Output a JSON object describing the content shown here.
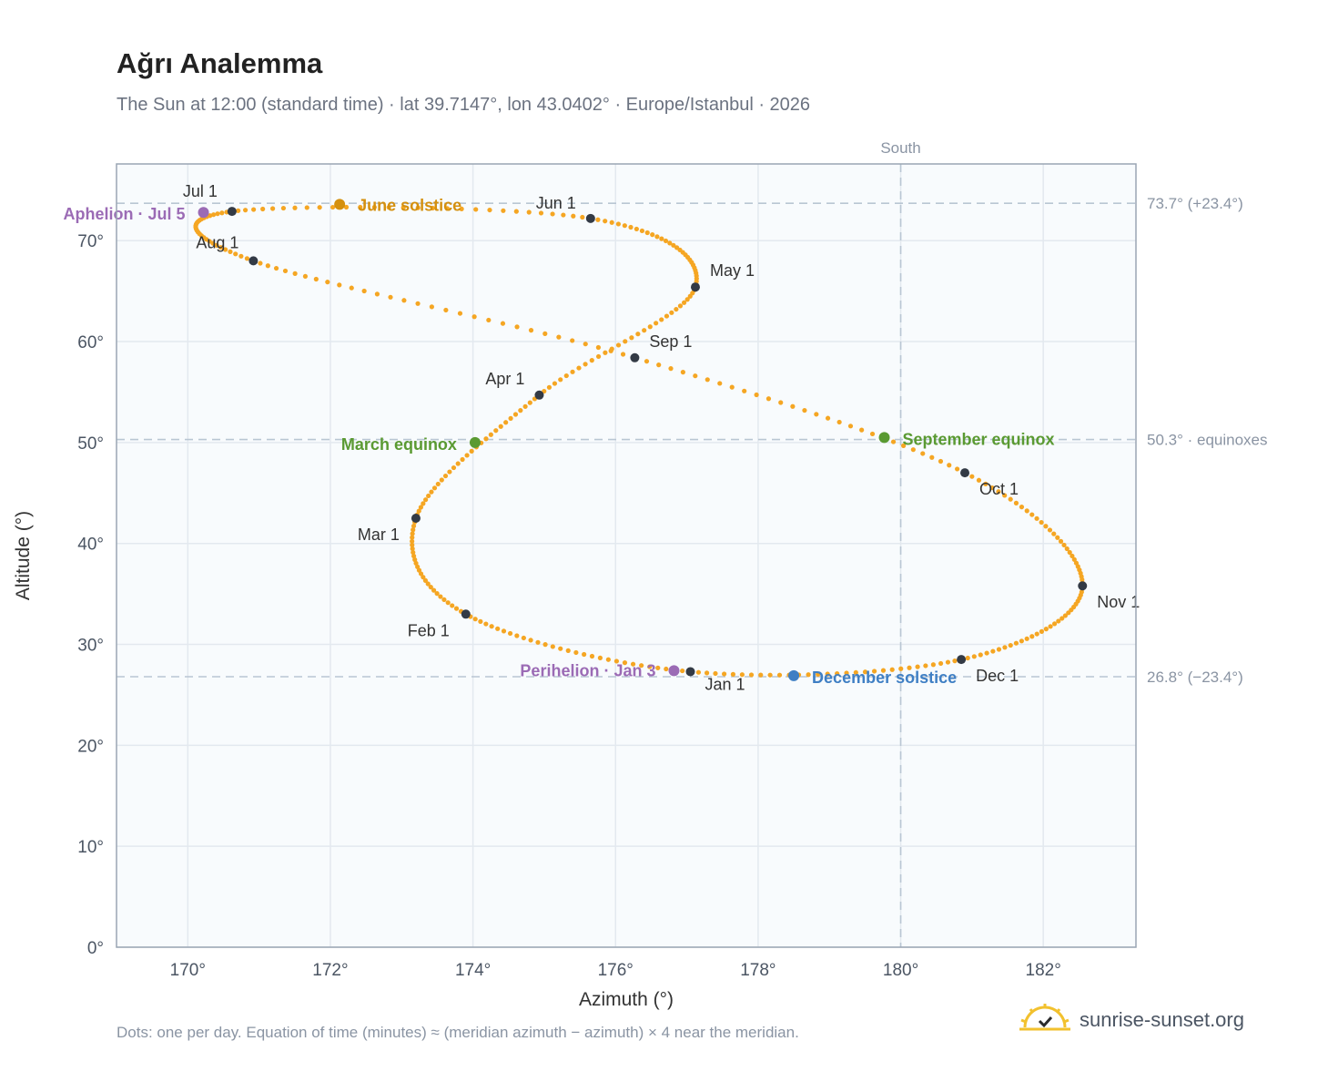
{
  "title": "Ağrı Analemma",
  "subtitle": "The Sun at 12:00 (standard time) · lat 39.7147°, lon 43.0402° · Europe/Istanbul · 2026",
  "footnote": "Dots: one per day. Equation of time (minutes) ≈ (meridian azimuth − azimuth) × 4 near the meridian.",
  "brand": {
    "text": "sunrise-sunset.org",
    "icon": "sun-check-icon",
    "icon_color": "#f2c12e"
  },
  "colors": {
    "curve": "#f5a623",
    "month_dot": "#333a45",
    "solstice_june": "#d4900f",
    "equinox": "#5a9a32",
    "solstice_december": "#3f7fc4",
    "apsis": "#9b6bb5",
    "plot_bg": "#f8fbfd",
    "grid": "#e3e9ef",
    "ref_line": "#b9c6d3"
  },
  "chart_data": {
    "type": "scatter",
    "title": "Ağrı Analemma",
    "xlabel": "Azimuth (°)",
    "ylabel": "Altitude (°)",
    "xlim": [
      169,
      183.3
    ],
    "ylim": [
      0,
      77.6
    ],
    "xticks": [
      170,
      172,
      174,
      176,
      178,
      180,
      182
    ],
    "xtick_labels": [
      "170°",
      "172°",
      "174°",
      "176°",
      "178°",
      "180°",
      "182°"
    ],
    "yticks": [
      0,
      10,
      20,
      30,
      40,
      50,
      60,
      70
    ],
    "ytick_labels": [
      "0°",
      "10°",
      "20°",
      "30°",
      "40°",
      "50°",
      "60°",
      "70°"
    ],
    "grid": true,
    "vertical_reference": {
      "x": 180,
      "label": "South"
    },
    "horizontal_references": [
      {
        "y": 73.7,
        "label": "73.7° (+23.4°)"
      },
      {
        "y": 50.3,
        "label": "50.3° · equinoxes"
      },
      {
        "y": 26.8,
        "label": "26.8° (−23.4°)"
      }
    ],
    "month_markers": [
      {
        "label": "Jan 1",
        "azimuth": 177.05,
        "altitude": 27.3
      },
      {
        "label": "Feb 1",
        "azimuth": 173.9,
        "altitude": 33.0
      },
      {
        "label": "Mar 1",
        "azimuth": 173.2,
        "altitude": 42.5
      },
      {
        "label": "Apr 1",
        "azimuth": 174.93,
        "altitude": 54.7
      },
      {
        "label": "May 1",
        "azimuth": 177.12,
        "altitude": 65.4
      },
      {
        "label": "Jun 1",
        "azimuth": 175.65,
        "altitude": 72.2
      },
      {
        "label": "Jul 1",
        "azimuth": 170.62,
        "altitude": 72.9
      },
      {
        "label": "Aug 1",
        "azimuth": 170.92,
        "altitude": 68.0
      },
      {
        "label": "Sep 1",
        "azimuth": 176.27,
        "altitude": 58.4
      },
      {
        "label": "Oct 1",
        "azimuth": 180.9,
        "altitude": 47.0
      },
      {
        "label": "Nov 1",
        "azimuth": 182.55,
        "altitude": 35.8
      },
      {
        "label": "Dec 1",
        "azimuth": 180.85,
        "altitude": 28.5
      }
    ],
    "events": [
      {
        "label": "June solstice",
        "azimuth": 172.13,
        "altitude": 73.6,
        "color": "#d4900f"
      },
      {
        "label": "March equinox",
        "azimuth": 174.03,
        "altitude": 50.0,
        "color": "#5a9a32"
      },
      {
        "label": "September equinox",
        "azimuth": 179.77,
        "altitude": 50.5,
        "color": "#5a9a32"
      },
      {
        "label": "December solstice",
        "azimuth": 178.5,
        "altitude": 26.9,
        "color": "#3f7fc4"
      },
      {
        "label": "Aphelion · Jul 5",
        "azimuth": 170.22,
        "altitude": 72.8,
        "color": "#9b6bb5"
      },
      {
        "label": "Perihelion · Jan 3",
        "azimuth": 176.82,
        "altitude": 27.4,
        "color": "#9b6bb5"
      }
    ]
  }
}
